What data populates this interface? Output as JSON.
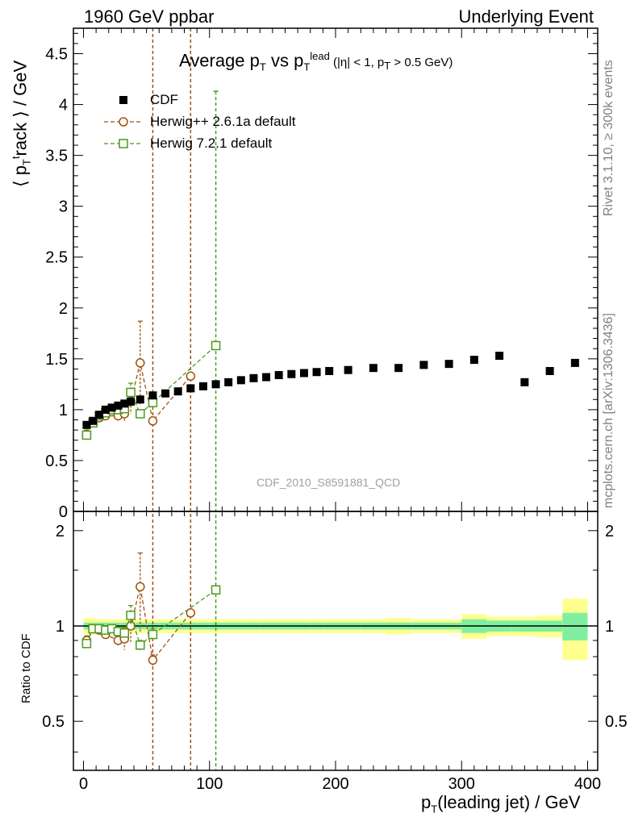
{
  "header": {
    "left": "1960 GeV ppbar",
    "right": "Underlying Event"
  },
  "side": {
    "rivet": "Rivet 3.1.10, ≥ 300k events",
    "mcplots": "mcplots.cern.ch [arXiv:1306.3436]"
  },
  "title": {
    "main": "Average p",
    "sub1": "T",
    "vs": " vs p",
    "sub2": "T",
    "sup": "lead",
    "cond_a": " (|η| < 1, p",
    "cond_sub": "T",
    "cond_b": " > 0.5 GeV)"
  },
  "watermark": "CDF_2010_S8591881_QCD",
  "ylabel_main": {
    "a": "⟨ p",
    "sub": "T",
    "sup": "t",
    "b": "rack ⟩ / GeV"
  },
  "ylabel_ratio": "Ratio to CDF",
  "xlabel": {
    "a": "p",
    "sub": "T",
    "b": "(leading jet) / GeV"
  },
  "legend": {
    "cdf": "CDF",
    "herwigpp": "Herwig++ 2.6.1a default",
    "herwig7": "Herwig 7.2.1 default"
  },
  "colors": {
    "data": "#000000",
    "herwigpp": "#a0520f",
    "herwig7": "#4c9a1a",
    "band_inner": "#80f0a0",
    "band_outer": "#ffff90"
  },
  "chart_data": {
    "type": "scatter",
    "x_ticks": [
      0,
      100,
      200,
      300,
      400
    ],
    "main_y_ticks": [
      0,
      0.5,
      1,
      1.5,
      2,
      2.5,
      3,
      3.5,
      4,
      4.5
    ],
    "main_y_ticklabels": [
      "0",
      "0.5",
      "1",
      "1.5",
      "2",
      "2.5",
      "3",
      "3.5",
      "4",
      "4.5"
    ],
    "ratio_y_ticks": [
      0.5,
      1,
      2
    ],
    "ratio_y_ticklabels": [
      "0.5",
      "1",
      "2"
    ],
    "xlim": [
      -8,
      408
    ],
    "ylim_main": [
      0,
      4.75
    ],
    "ylim_ratio": [
      0.35,
      2.3
    ],
    "ratio_log": true,
    "series": [
      {
        "name": "CDF",
        "x": [
          2.5,
          7.5,
          12.5,
          17.5,
          22.5,
          27.5,
          32.5,
          37.5,
          45,
          55,
          65,
          75,
          85,
          95,
          105,
          115,
          125,
          135,
          145,
          155,
          165,
          175,
          185,
          195,
          210,
          230,
          250,
          270,
          290,
          310,
          330,
          350,
          370,
          390
        ],
        "y": [
          0.85,
          0.89,
          0.95,
          1.0,
          1.02,
          1.04,
          1.06,
          1.08,
          1.1,
          1.14,
          1.16,
          1.18,
          1.21,
          1.23,
          1.25,
          1.27,
          1.29,
          1.31,
          1.32,
          1.34,
          1.35,
          1.36,
          1.37,
          1.38,
          1.39,
          1.41,
          1.41,
          1.44,
          1.45,
          1.49,
          1.53,
          1.27,
          1.38,
          1.46
        ],
        "band_inner": [
          0.025,
          0.025,
          0.025,
          0.025,
          0.025,
          0.025,
          0.025,
          0.025,
          0.025,
          0.025,
          0.025,
          0.025,
          0.025,
          0.025,
          0.025,
          0.025,
          0.025,
          0.025,
          0.025,
          0.025,
          0.025,
          0.025,
          0.025,
          0.025,
          0.025,
          0.025,
          0.025,
          0.025,
          0.025,
          0.05,
          0.04,
          0.04,
          0.04,
          0.1
        ],
        "band_outer": [
          0.06,
          0.06,
          0.05,
          0.05,
          0.05,
          0.05,
          0.05,
          0.05,
          0.05,
          0.05,
          0.05,
          0.05,
          0.05,
          0.05,
          0.05,
          0.05,
          0.05,
          0.05,
          0.05,
          0.05,
          0.05,
          0.05,
          0.05,
          0.05,
          0.05,
          0.05,
          0.06,
          0.05,
          0.05,
          0.09,
          0.07,
          0.07,
          0.08,
          0.22
        ]
      },
      {
        "name": "Herwig++ 2.6.1a default",
        "x": [
          2.5,
          7.5,
          12.5,
          17.5,
          27.5,
          32.5,
          37.5,
          45,
          55,
          85
        ],
        "y": [
          0.76,
          0.87,
          0.92,
          0.94,
          0.94,
          0.96,
          1.08,
          1.46,
          0.89,
          1.33
        ],
        "yerr": [
          0.03,
          0.02,
          0.02,
          0.02,
          0.03,
          0.07,
          0.12,
          0.41,
          0.03,
          0.0
        ],
        "ratio": [
          0.9,
          0.98,
          0.97,
          0.94,
          0.9,
          0.91,
          1.0,
          1.33,
          0.78,
          1.1
        ],
        "ratio_err": [
          0.03,
          0.02,
          0.02,
          0.02,
          0.03,
          0.07,
          0.11,
          0.37,
          0.03,
          0.0
        ],
        "spike_x": 55,
        "spike_x2": 85
      },
      {
        "name": "Herwig 7.2.1 default",
        "x": [
          2.5,
          7.5,
          12.5,
          17.5,
          22.5,
          27.5,
          32.5,
          37.5,
          45,
          55,
          105
        ],
        "y": [
          0.75,
          0.87,
          0.94,
          0.97,
          1.0,
          1.0,
          1.01,
          1.17,
          0.96,
          1.07,
          1.63
        ],
        "yerr": [
          0.02,
          0.02,
          0.02,
          0.02,
          0.02,
          0.02,
          0.04,
          0.09,
          0.03,
          0.04,
          0.0
        ],
        "ratio": [
          0.88,
          0.98,
          0.98,
          0.97,
          0.98,
          0.96,
          0.95,
          1.08,
          0.87,
          0.94,
          1.3
        ],
        "ratio_err": [
          0.02,
          0.02,
          0.02,
          0.02,
          0.02,
          0.02,
          0.04,
          0.08,
          0.03,
          0.04,
          0.0
        ],
        "spike_x": 105
      }
    ]
  }
}
